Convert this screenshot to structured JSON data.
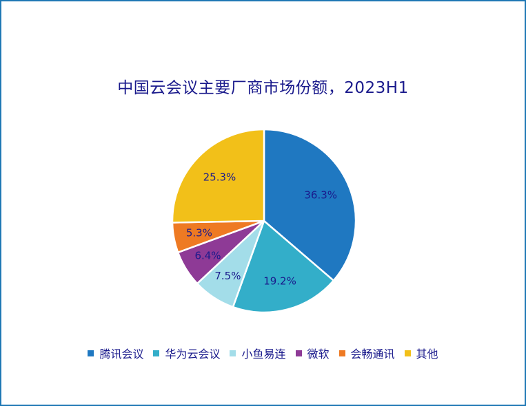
{
  "chart_data": {
    "type": "pie",
    "title": "中国云会议主要厂商市场份额，2023H1",
    "categories": [
      "腾讯会议",
      "华为云会议",
      "小鱼易连",
      "微软",
      "会畅通讯",
      "其他"
    ],
    "values": [
      36.3,
      19.2,
      7.5,
      6.4,
      5.3,
      25.3
    ],
    "value_labels": [
      "36.3%",
      "19.2%",
      "7.5%",
      "6.4%",
      "5.3%",
      "25.3%"
    ],
    "colors": [
      "#1f78c1",
      "#33aec9",
      "#a3dde9",
      "#8e3a96",
      "#ee7a23",
      "#f2c019"
    ],
    "legend_position": "bottom",
    "start_angle_deg": 0,
    "direction": "clockwise"
  }
}
